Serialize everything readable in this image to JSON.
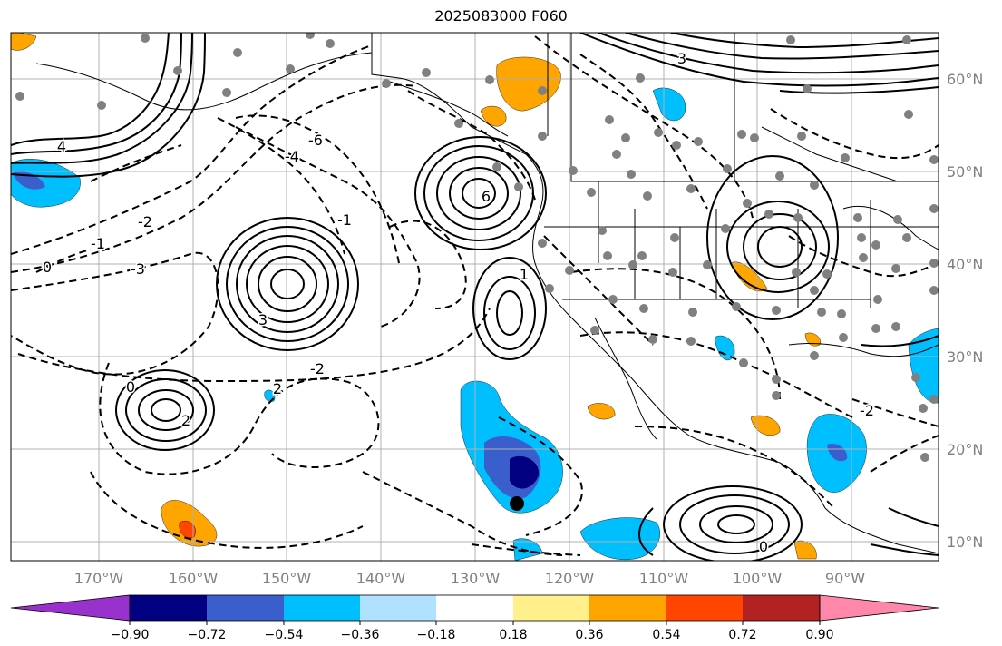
{
  "title": "2025083000 F060",
  "lon_labels": [
    "170°W",
    "160°W",
    "150°W",
    "140°W",
    "130°W",
    "120°W",
    "110°W",
    "100°W",
    "90°W"
  ],
  "lat_labels": [
    "60°N",
    "50°N",
    "40°N",
    "30°N",
    "20°N",
    "10°N"
  ],
  "contour_labels": [
    "-2",
    "0",
    "2",
    "4",
    "6",
    "-6",
    "-4",
    "-3",
    "-1",
    "1",
    "3",
    "-2",
    "0",
    "2",
    "3",
    "-2",
    "0",
    "-1"
  ],
  "colorbar": {
    "colors": [
      "#9932CC",
      "#000080",
      "#3A5FCD",
      "#00BFFF",
      "#B0E2FF",
      "#FFFFFF",
      "#FFF08C",
      "#FFA500",
      "#FF4500",
      "#B22222",
      "#FF88AA"
    ],
    "tick_labels": [
      "−0.90",
      "−0.72",
      "−0.54",
      "−0.36",
      "−0.18",
      "0.18",
      "0.36",
      "0.54",
      "0.72",
      "0.90"
    ]
  },
  "colors": {
    "warm": "#FFA500",
    "warm2": "#FF4500",
    "cool": "#00BFFF",
    "cool2": "#3A5FCD",
    "cool3": "#000080",
    "station": "#808080"
  }
}
